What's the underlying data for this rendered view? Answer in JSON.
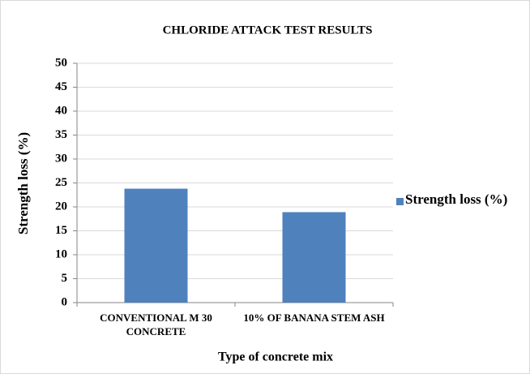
{
  "chart_data": {
    "type": "bar",
    "title": "CHLORIDE ATTACK TEST RESULTS",
    "y_label": "Strength loss (%)",
    "x_label": "Type of concrete mix",
    "categories": [
      "CONVENTIONAL M 30 CONCRETE",
      "10% OF BANANA STEM ASH"
    ],
    "series": [
      {
        "name": "Strength loss (%)",
        "color": "#4f81bd",
        "values": [
          23.8,
          18.9
        ]
      }
    ],
    "ylim": [
      0,
      50
    ],
    "yticks": [
      0,
      5,
      10,
      15,
      20,
      25,
      30,
      35,
      40,
      45,
      50
    ],
    "grid": true,
    "legend": "right"
  }
}
